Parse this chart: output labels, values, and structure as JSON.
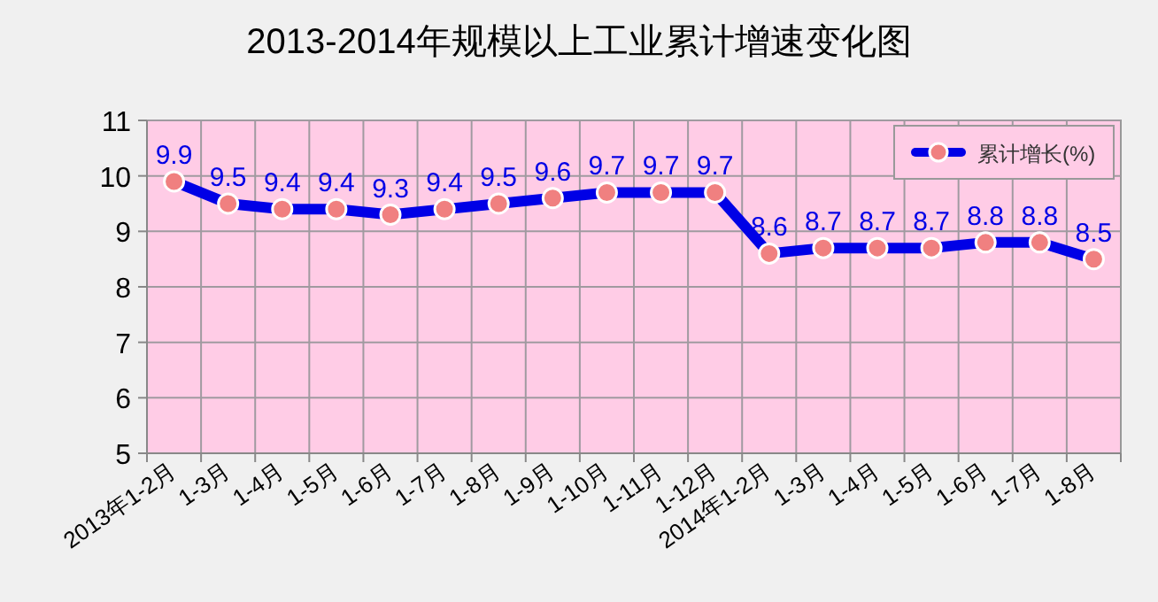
{
  "chart_data": {
    "type": "line",
    "title": "2013-2014年规模以上工业累计增速变化图",
    "categories": [
      "2013年1-2月",
      "1-3月",
      "1-4月",
      "1-5月",
      "1-6月",
      "1-7月",
      "1-8月",
      "1-9月",
      "1-10月",
      "1-11月",
      "1-12月",
      "2014年1-2月",
      "1-3月",
      "1-4月",
      "1-5月",
      "1-6月",
      "1-7月",
      "1-8月"
    ],
    "series": [
      {
        "name": "累计增长(%)",
        "color": "#0000e6",
        "values": [
          9.9,
          9.5,
          9.4,
          9.4,
          9.3,
          9.4,
          9.5,
          9.6,
          9.7,
          9.7,
          9.7,
          8.6,
          8.7,
          8.7,
          8.7,
          8.8,
          8.8,
          8.5
        ]
      }
    ],
    "ylim": [
      5,
      11
    ],
    "yticks": [
      5,
      6,
      7,
      8,
      9,
      10,
      11
    ],
    "grid": true,
    "legend": "top right",
    "marker": "circle",
    "line_style": "solid",
    "data_labels": true
  }
}
